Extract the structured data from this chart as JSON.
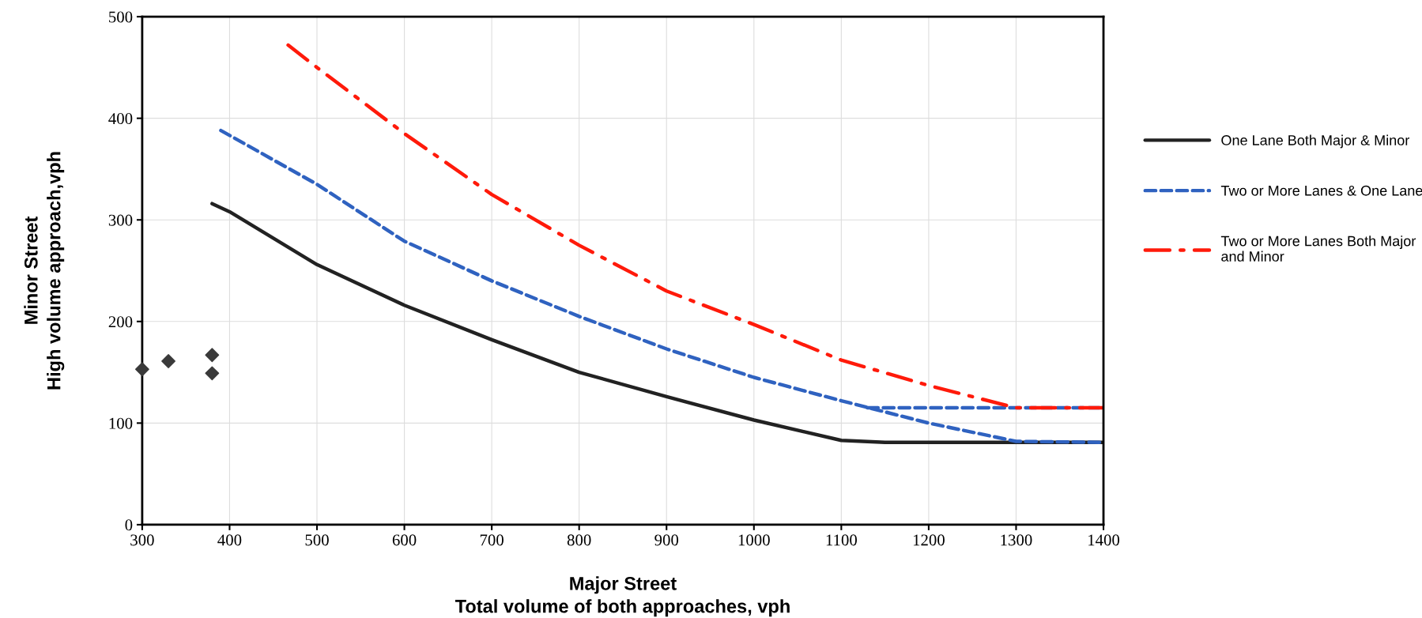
{
  "chart_data": {
    "type": "line",
    "xlabel": "Major Street\nTotal volume of both approaches, vph",
    "ylabel": "Minor Street\nHigh volume approach,vph",
    "xlim": [
      300,
      1400
    ],
    "xticks": [
      300,
      400,
      500,
      600,
      700,
      800,
      900,
      1000,
      1100,
      1200,
      1300,
      1400
    ],
    "ylim": [
      0,
      500
    ],
    "yticks": [
      0,
      100,
      200,
      300,
      400,
      500
    ],
    "grid": true,
    "legend": "right",
    "marker": "none",
    "series": [
      {
        "name": "One Lane Both Major & Minor",
        "color": "#222222",
        "line_style": "solid",
        "x": [
          380,
          400,
          500,
          600,
          700,
          800,
          900,
          1000,
          1100,
          1150,
          1400
        ],
        "values": [
          316,
          308,
          256,
          216,
          182,
          150,
          126,
          103,
          83,
          81,
          81
        ]
      },
      {
        "name": "Two or More Lanes & One Lane",
        "color": "#2f62c0",
        "line_style": "dashed",
        "x": [
          390,
          500,
          600,
          700,
          800,
          900,
          1000,
          1100,
          1200,
          1300,
          1400
        ],
        "values": [
          388,
          335,
          279,
          240,
          205,
          173,
          145,
          122,
          100,
          82,
          81
        ]
      },
      {
        "color": "#2f62c0",
        "line_style": "dashed",
        "x": [
          1130,
          1400
        ],
        "values": [
          115,
          115
        ]
      },
      {
        "name": "Two or More Lanes Both Major and Minor",
        "color": "#ff1a0a",
        "line_style": "dashdot",
        "x": [
          467,
          500,
          600,
          700,
          800,
          900,
          1000,
          1100,
          1200,
          1300,
          1400
        ],
        "values": [
          472,
          450,
          385,
          325,
          275,
          230,
          197,
          162,
          137,
          115,
          115
        ]
      },
      {
        "type": "scatter",
        "color": "#3a3a3a",
        "marker": "diamond",
        "x": [
          300,
          330,
          380,
          380
        ],
        "values": [
          153,
          161,
          167,
          149
        ]
      }
    ]
  }
}
